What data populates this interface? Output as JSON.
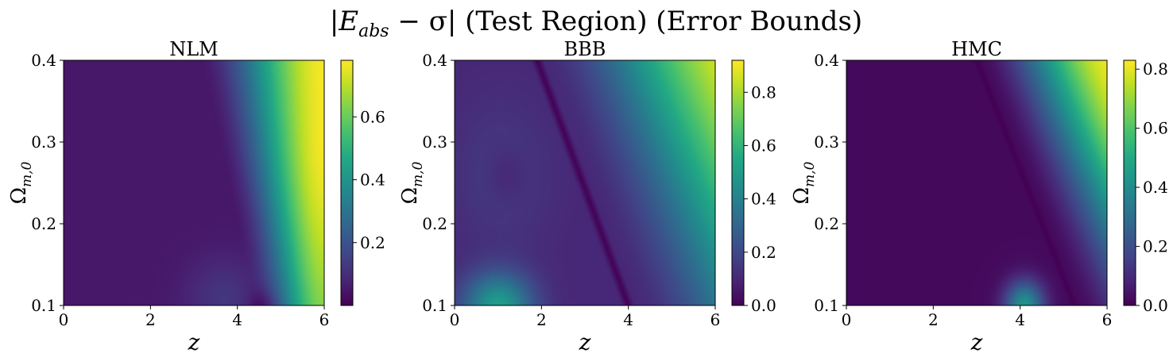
{
  "figure": {
    "title_main": "|E",
    "title_sub": "abs",
    "title_rest": " − σ| (Test Region) (Error Bounds)"
  },
  "chart_data": [
    {
      "type": "heatmap",
      "title": "NLM",
      "xlabel": "z",
      "ylabel_main": "Ω",
      "ylabel_sub": "m,0",
      "xlim": [
        0,
        6
      ],
      "ylim": [
        0.1,
        0.4
      ],
      "x_ticks": [
        "0",
        "2",
        "4",
        "6"
      ],
      "y_ticks": [
        "0.1",
        "0.2",
        "0.3",
        "0.4"
      ],
      "colorbar": {
        "min": 0.0,
        "max": 0.78,
        "ticks": [
          "0.2",
          "0.4",
          "0.6"
        ],
        "tick_values": [
          0.2,
          0.4,
          0.6
        ]
      },
      "colormap": "viridis",
      "field": "NLM"
    },
    {
      "type": "heatmap",
      "title": "BBB",
      "xlabel": "z",
      "ylabel_main": "Ω",
      "ylabel_sub": "m,0",
      "xlim": [
        0,
        6
      ],
      "ylim": [
        0.1,
        0.4
      ],
      "x_ticks": [
        "0",
        "2",
        "4",
        "6"
      ],
      "y_ticks": [
        "0.1",
        "0.2",
        "0.3",
        "0.4"
      ],
      "colorbar": {
        "min": 0.0,
        "max": 0.92,
        "ticks": [
          "0.0",
          "0.2",
          "0.4",
          "0.6",
          "0.8"
        ],
        "tick_values": [
          0.0,
          0.2,
          0.4,
          0.6,
          0.8
        ]
      },
      "colormap": "viridis",
      "field": "BBB"
    },
    {
      "type": "heatmap",
      "title": "HMC",
      "xlabel": "z",
      "ylabel_main": "Ω",
      "ylabel_sub": "m,0",
      "xlim": [
        0,
        6
      ],
      "ylim": [
        0.1,
        0.4
      ],
      "x_ticks": [
        "0",
        "2",
        "4",
        "6"
      ],
      "y_ticks": [
        "0.1",
        "0.2",
        "0.3",
        "0.4"
      ],
      "colorbar": {
        "min": 0.0,
        "max": 0.83,
        "ticks": [
          "0.0",
          "0.2",
          "0.4",
          "0.6",
          "0.8"
        ],
        "tick_values": [
          0.0,
          0.2,
          0.4,
          0.6,
          0.8
        ]
      },
      "colormap": "viridis",
      "field": "HMC"
    }
  ]
}
